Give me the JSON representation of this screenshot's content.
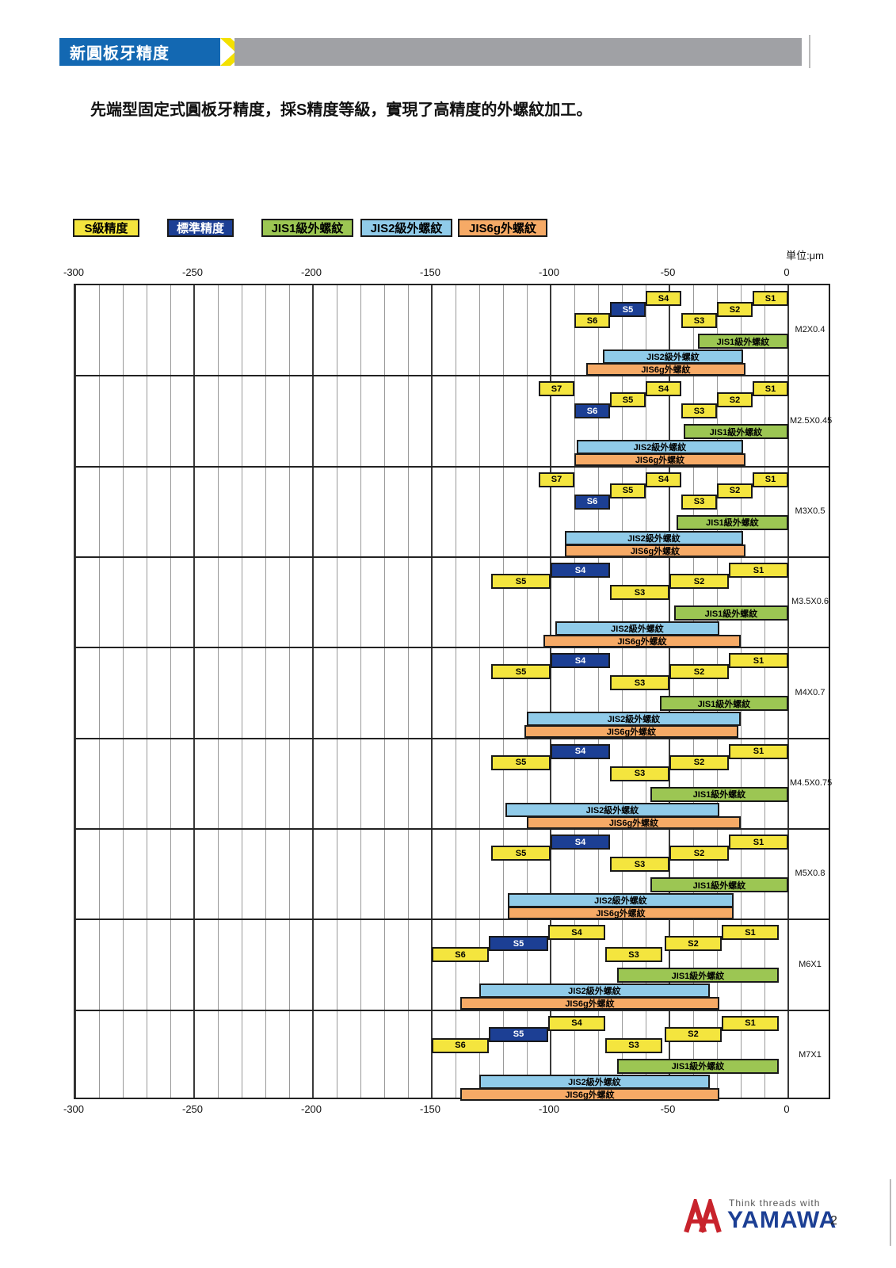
{
  "header": {
    "banner_title": "新圓板牙精度",
    "subtitle": "先端型固定式圓板牙精度，採S精度等級，實現了高精度的外螺紋加工。",
    "banner_color": "#1368b2",
    "chevron_color": "#f3e000",
    "graybar_color": "#a0a1a5"
  },
  "footer": {
    "tagline": "Think threads with",
    "brand": "YAMAWA",
    "logo_red": "#c8232c",
    "brand_blue": "#1c3f94",
    "page_number": "2"
  },
  "chart_data": {
    "type": "range-bar",
    "description": "Thread pitch-diameter tolerance zones (deviation from basic size) for fixed-type round dies, S precision classes vs JIS external thread classes",
    "unit_label": "単位:μm",
    "axis": {
      "min": -300,
      "max": 0,
      "minor_step": 10,
      "major_ticks": [
        -300,
        -250,
        -200,
        -150,
        -100,
        -50,
        0
      ],
      "tick_labels": [
        "-300",
        "-250",
        "-200",
        "-150",
        "-100",
        "-50",
        "0"
      ]
    },
    "legend": [
      {
        "id": "s",
        "label": "S級精度",
        "bg": "#f4e53e",
        "fg": "#000000"
      },
      {
        "id": "std",
        "label": "標準精度",
        "bg": "#1c3f94",
        "fg": "#ffffff"
      },
      {
        "id": "jis1",
        "label": "JIS1級外螺紋",
        "bg": "#9cc653",
        "fg": "#000000"
      },
      {
        "id": "jis2",
        "label": "JIS2級外螺紋",
        "bg": "#90cbe9",
        "fg": "#000000"
      },
      {
        "id": "jis6g",
        "label": "JIS6g外螺紋",
        "bg": "#f6aa66",
        "fg": "#000000"
      }
    ],
    "blocks": [
      {
        "size": "M2X0.4",
        "bars": [
          {
            "label": "S4",
            "from": -60,
            "to": -45,
            "row": 0,
            "type": "s"
          },
          {
            "label": "S1",
            "from": -15,
            "to": 0,
            "row": 0,
            "type": "s"
          },
          {
            "label": "S5",
            "from": -75,
            "to": -60,
            "row": 1,
            "type": "std"
          },
          {
            "label": "S2",
            "from": -30,
            "to": -15,
            "row": 1,
            "type": "s"
          },
          {
            "label": "S6",
            "from": -90,
            "to": -75,
            "row": 2,
            "type": "s"
          },
          {
            "label": "S3",
            "from": -45,
            "to": -30,
            "row": 2,
            "type": "s"
          },
          {
            "label": "JIS1級外螺紋",
            "from": -38,
            "to": 0,
            "row": 3,
            "type": "jis1"
          },
          {
            "label": "JIS2級外螺紋",
            "from": -78,
            "to": -19,
            "row": 4,
            "type": "jis2"
          },
          {
            "label": "JIS6g外螺紋",
            "from": -85,
            "to": -18,
            "row": 5,
            "type": "jis6g"
          }
        ]
      },
      {
        "size": "M2.5X0.45",
        "bars": [
          {
            "label": "S7",
            "from": -105,
            "to": -90,
            "row": 0,
            "type": "s"
          },
          {
            "label": "S4",
            "from": -60,
            "to": -45,
            "row": 0,
            "type": "s"
          },
          {
            "label": "S1",
            "from": -15,
            "to": 0,
            "row": 0,
            "type": "s"
          },
          {
            "label": "S5",
            "from": -75,
            "to": -60,
            "row": 1,
            "type": "s"
          },
          {
            "label": "S2",
            "from": -30,
            "to": -15,
            "row": 1,
            "type": "s"
          },
          {
            "label": "S6",
            "from": -90,
            "to": -75,
            "row": 2,
            "type": "std"
          },
          {
            "label": "S3",
            "from": -45,
            "to": -30,
            "row": 2,
            "type": "s"
          },
          {
            "label": "JIS1級外螺紋",
            "from": -44,
            "to": 0,
            "row": 3,
            "type": "jis1"
          },
          {
            "label": "JIS2級外螺紋",
            "from": -89,
            "to": -19,
            "row": 4,
            "type": "jis2"
          },
          {
            "label": "JIS6g外螺紋",
            "from": -90,
            "to": -18,
            "row": 5,
            "type": "jis6g"
          }
        ]
      },
      {
        "size": "M3X0.5",
        "bars": [
          {
            "label": "S7",
            "from": -105,
            "to": -90,
            "row": 0,
            "type": "s"
          },
          {
            "label": "S4",
            "from": -60,
            "to": -45,
            "row": 0,
            "type": "s"
          },
          {
            "label": "S1",
            "from": -15,
            "to": 0,
            "row": 0,
            "type": "s"
          },
          {
            "label": "S5",
            "from": -75,
            "to": -60,
            "row": 1,
            "type": "s"
          },
          {
            "label": "S2",
            "from": -30,
            "to": -15,
            "row": 1,
            "type": "s"
          },
          {
            "label": "S6",
            "from": -90,
            "to": -75,
            "row": 2,
            "type": "std"
          },
          {
            "label": "S3",
            "from": -45,
            "to": -30,
            "row": 2,
            "type": "s"
          },
          {
            "label": "JIS1級外螺紋",
            "from": -47,
            "to": 0,
            "row": 3,
            "type": "jis1"
          },
          {
            "label": "JIS2級外螺紋",
            "from": -94,
            "to": -19,
            "row": 4,
            "type": "jis2"
          },
          {
            "label": "JIS6g外螺紋",
            "from": -94,
            "to": -18,
            "row": 5,
            "type": "jis6g"
          }
        ]
      },
      {
        "size": "M3.5X0.6",
        "bars": [
          {
            "label": "S4",
            "from": -100,
            "to": -75,
            "row": 0,
            "type": "std"
          },
          {
            "label": "S1",
            "from": -25,
            "to": 0,
            "row": 0,
            "type": "s"
          },
          {
            "label": "S5",
            "from": -125,
            "to": -100,
            "row": 1,
            "type": "s"
          },
          {
            "label": "S2",
            "from": -50,
            "to": -25,
            "row": 1,
            "type": "s"
          },
          {
            "label": "S3",
            "from": -75,
            "to": -50,
            "row": 2,
            "type": "s"
          },
          {
            "label": "JIS1級外螺紋",
            "from": -48,
            "to": 0,
            "row": 3,
            "type": "jis1"
          },
          {
            "label": "JIS2級外螺紋",
            "from": -98,
            "to": -29,
            "row": 4,
            "type": "jis2"
          },
          {
            "label": "JIS6g外螺紋",
            "from": -103,
            "to": -20,
            "row": 5,
            "type": "jis6g"
          }
        ]
      },
      {
        "size": "M4X0.7",
        "bars": [
          {
            "label": "S4",
            "from": -100,
            "to": -75,
            "row": 0,
            "type": "std"
          },
          {
            "label": "S1",
            "from": -25,
            "to": 0,
            "row": 0,
            "type": "s"
          },
          {
            "label": "S5",
            "from": -125,
            "to": -100,
            "row": 1,
            "type": "s"
          },
          {
            "label": "S2",
            "from": -50,
            "to": -25,
            "row": 1,
            "type": "s"
          },
          {
            "label": "S3",
            "from": -75,
            "to": -50,
            "row": 2,
            "type": "s"
          },
          {
            "label": "JIS1級外螺紋",
            "from": -54,
            "to": 0,
            "row": 3,
            "type": "jis1"
          },
          {
            "label": "JIS2級外螺紋",
            "from": -110,
            "to": -20,
            "row": 4,
            "type": "jis2"
          },
          {
            "label": "JIS6g外螺紋",
            "from": -111,
            "to": -21,
            "row": 5,
            "type": "jis6g"
          }
        ]
      },
      {
        "size": "M4.5X0.75",
        "bars": [
          {
            "label": "S4",
            "from": -100,
            "to": -75,
            "row": 0,
            "type": "std"
          },
          {
            "label": "S1",
            "from": -25,
            "to": 0,
            "row": 0,
            "type": "s"
          },
          {
            "label": "S5",
            "from": -125,
            "to": -100,
            "row": 1,
            "type": "s"
          },
          {
            "label": "S2",
            "from": -50,
            "to": -25,
            "row": 1,
            "type": "s"
          },
          {
            "label": "S3",
            "from": -75,
            "to": -50,
            "row": 2,
            "type": "s"
          },
          {
            "label": "JIS1級外螺紋",
            "from": -58,
            "to": 0,
            "row": 3,
            "type": "jis1"
          },
          {
            "label": "JIS2級外螺紋",
            "from": -119,
            "to": -29,
            "row": 4,
            "type": "jis2"
          },
          {
            "label": "JIS6g外螺紋",
            "from": -110,
            "to": -20,
            "row": 5,
            "type": "jis6g"
          }
        ]
      },
      {
        "size": "M5X0.8",
        "bars": [
          {
            "label": "S4",
            "from": -100,
            "to": -75,
            "row": 0,
            "type": "std"
          },
          {
            "label": "S1",
            "from": -25,
            "to": 0,
            "row": 0,
            "type": "s"
          },
          {
            "label": "S5",
            "from": -125,
            "to": -100,
            "row": 1,
            "type": "s"
          },
          {
            "label": "S2",
            "from": -50,
            "to": -25,
            "row": 1,
            "type": "s"
          },
          {
            "label": "S3",
            "from": -75,
            "to": -50,
            "row": 2,
            "type": "s"
          },
          {
            "label": "JIS1級外螺紋",
            "from": -58,
            "to": 0,
            "row": 3,
            "type": "jis1"
          },
          {
            "label": "JIS2級外螺紋",
            "from": -118,
            "to": -23,
            "row": 4,
            "type": "jis2"
          },
          {
            "label": "JIS6g外螺紋",
            "from": -118,
            "to": -23,
            "row": 5,
            "type": "jis6g"
          }
        ]
      },
      {
        "size": "M6X1",
        "bars": [
          {
            "label": "S4",
            "from": -101,
            "to": -77,
            "row": 0,
            "type": "s"
          },
          {
            "label": "S1",
            "from": -28,
            "to": -4,
            "row": 0,
            "type": "s"
          },
          {
            "label": "S5",
            "from": -126,
            "to": -101,
            "row": 1,
            "type": "std"
          },
          {
            "label": "S2",
            "from": -52,
            "to": -28,
            "row": 1,
            "type": "s"
          },
          {
            "label": "S6",
            "from": -150,
            "to": -126,
            "row": 2,
            "type": "s"
          },
          {
            "label": "S3",
            "from": -77,
            "to": -53,
            "row": 2,
            "type": "s"
          },
          {
            "label": "JIS1級外螺紋",
            "from": -72,
            "to": -4,
            "row": 3,
            "type": "jis1"
          },
          {
            "label": "JIS2級外螺紋",
            "from": -130,
            "to": -33,
            "row": 4,
            "type": "jis2"
          },
          {
            "label": "JIS6g外螺紋",
            "from": -138,
            "to": -29,
            "row": 5,
            "type": "jis6g"
          }
        ]
      },
      {
        "size": "M7X1",
        "bars": [
          {
            "label": "S4",
            "from": -101,
            "to": -77,
            "row": 0,
            "type": "s"
          },
          {
            "label": "S1",
            "from": -28,
            "to": -4,
            "row": 0,
            "type": "s"
          },
          {
            "label": "S5",
            "from": -126,
            "to": -101,
            "row": 1,
            "type": "std"
          },
          {
            "label": "S2",
            "from": -52,
            "to": -28,
            "row": 1,
            "type": "s"
          },
          {
            "label": "S6",
            "from": -150,
            "to": -126,
            "row": 2,
            "type": "s"
          },
          {
            "label": "S3",
            "from": -77,
            "to": -53,
            "row": 2,
            "type": "s"
          },
          {
            "label": "JIS1級外螺紋",
            "from": -72,
            "to": -4,
            "row": 3,
            "type": "jis1"
          },
          {
            "label": "JIS2級外螺紋",
            "from": -130,
            "to": -33,
            "row": 4,
            "type": "jis2"
          },
          {
            "label": "JIS6g外螺紋",
            "from": -138,
            "to": -29,
            "row": 5,
            "type": "jis6g"
          }
        ]
      }
    ]
  }
}
